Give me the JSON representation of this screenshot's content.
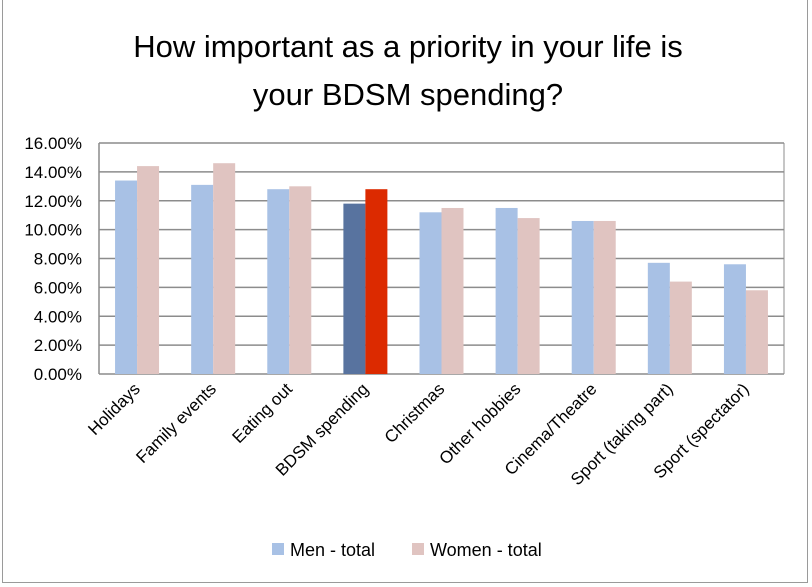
{
  "chart_data": {
    "type": "bar",
    "title": [
      "How important as a priority in your life is",
      "your BDSM spending?"
    ],
    "xlabel": "",
    "ylabel": "",
    "ylim": [
      0,
      16
    ],
    "yticks": [
      "0.00%",
      "2.00%",
      "4.00%",
      "6.00%",
      "8.00%",
      "10.00%",
      "12.00%",
      "14.00%",
      "16.00%"
    ],
    "grid": true,
    "legend_position": "bottom",
    "categories": [
      "Holidays",
      "Family events",
      "Eating out",
      "BDSM spending",
      "Christmas",
      "Other hobbies",
      "Cinema/Theatre",
      "Sport (taking part)",
      "Sport (spectator)"
    ],
    "highlight_category": "BDSM spending",
    "series": [
      {
        "name": "Men - total",
        "color": "#a8c1e5",
        "highlight_color": "#58739f",
        "values": [
          13.4,
          13.1,
          12.8,
          11.8,
          11.2,
          11.5,
          10.6,
          7.7,
          7.6
        ]
      },
      {
        "name": "Women - total",
        "color": "#e0c4c1",
        "highlight_color": "#dc2a00",
        "values": [
          14.4,
          14.6,
          13.0,
          12.8,
          11.5,
          10.8,
          10.6,
          6.4,
          5.8
        ]
      }
    ]
  }
}
